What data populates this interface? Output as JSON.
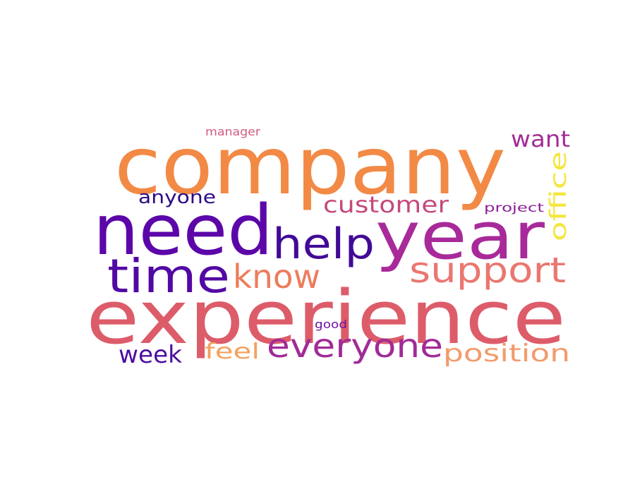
{
  "words": [
    {
      "key": "company",
      "text": "company",
      "color": "#f28a46"
    },
    {
      "key": "experience",
      "text": "experience",
      "color": "#dd5c6a"
    },
    {
      "key": "need",
      "text": "need",
      "color": "#5c06a9"
    },
    {
      "key": "year",
      "text": "year",
      "color": "#a82a9a"
    },
    {
      "key": "time",
      "text": "time",
      "color": "#5209a4"
    },
    {
      "key": "help",
      "text": "help",
      "color": "#420a96"
    },
    {
      "key": "support",
      "text": "support",
      "color": "#ea7770"
    },
    {
      "key": "know",
      "text": "know",
      "color": "#ed7c5c"
    },
    {
      "key": "everyone",
      "text": "everyone",
      "color": "#a12b97"
    },
    {
      "key": "customer",
      "text": "customer",
      "color": "#c5497c"
    },
    {
      "key": "position",
      "text": "position",
      "color": "#f39b6b"
    },
    {
      "key": "week",
      "text": "week",
      "color": "#4b0ea0"
    },
    {
      "key": "want",
      "text": "want",
      "color": "#a32d95"
    },
    {
      "key": "office",
      "text": "office",
      "color": "#f4e63c"
    },
    {
      "key": "feel",
      "text": "feel",
      "color": "#f5a05c"
    },
    {
      "key": "anyone",
      "text": "anyone",
      "color": "#2c0a84"
    },
    {
      "key": "project",
      "text": "project",
      "color": "#8c1e98"
    },
    {
      "key": "manager",
      "text": "manager",
      "color": "#d25a7e"
    },
    {
      "key": "good",
      "text": "good",
      "color": "#6e12a4"
    }
  ]
}
